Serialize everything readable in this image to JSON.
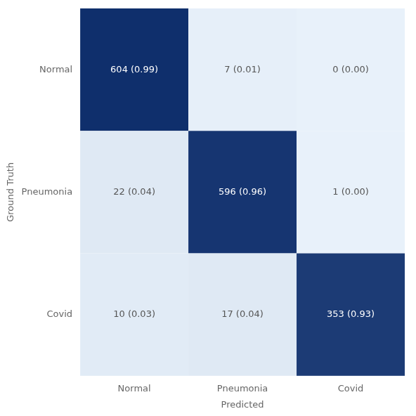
{
  "chart_data": {
    "type": "heatmap",
    "xlabel": "Predicted",
    "ylabel": "Ground Truth",
    "categories": [
      "Normal",
      "Pneumonia",
      "Covid"
    ],
    "values": [
      [
        0.99,
        0.01,
        0.0
      ],
      [
        0.04,
        0.96,
        0.0
      ],
      [
        0.03,
        0.04,
        0.93
      ]
    ],
    "counts": [
      [
        604,
        7,
        0
      ],
      [
        22,
        596,
        1
      ],
      [
        10,
        17,
        353
      ]
    ],
    "value_labels": [
      [
        "604 (0.99)",
        "7 (0.01)",
        "0 (0.00)"
      ],
      [
        "22 (0.04)",
        "596 (0.96)",
        "1 (0.00)"
      ],
      [
        "10 (0.03)",
        "17 (0.04)",
        "353 (0.93)"
      ]
    ],
    "data_labels": true,
    "cmap": [
      "#e8f1fa",
      "#0d2d6b"
    ],
    "vlim": [
      0,
      1
    ],
    "grid": false
  }
}
